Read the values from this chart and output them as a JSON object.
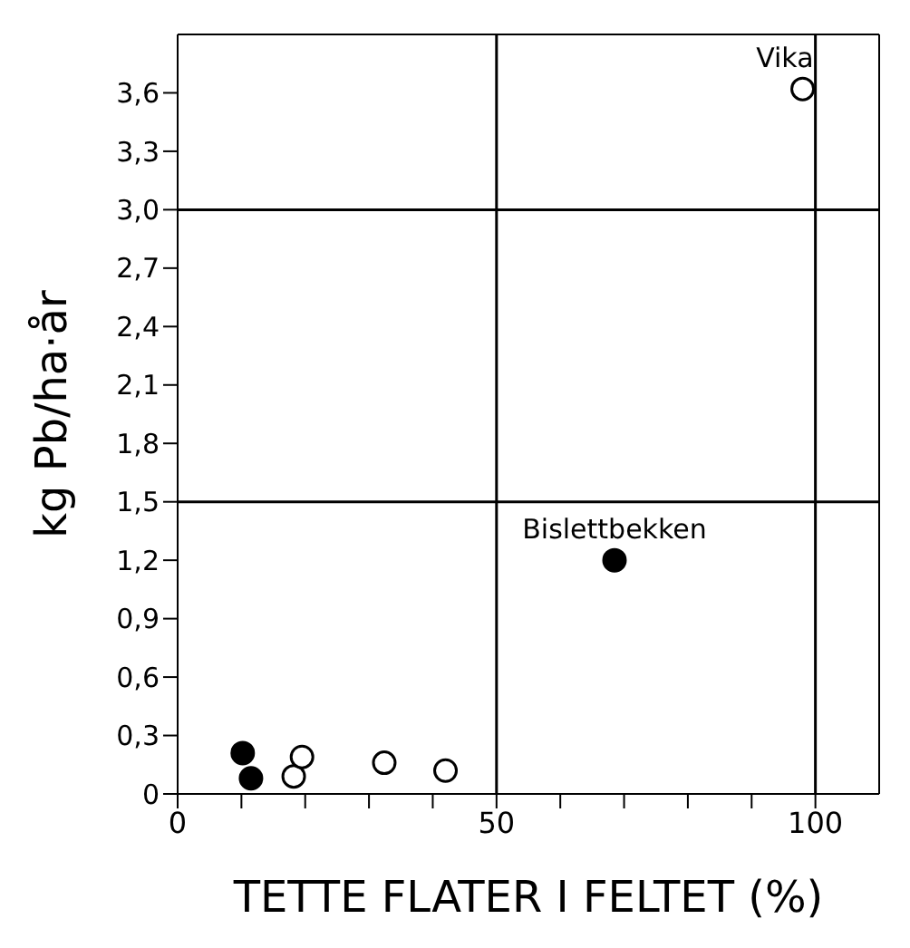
{
  "chart_data": {
    "type": "scatter",
    "xlabel": "TETTE FLATER I FELTET (%)",
    "ylabel": "kg Pb/ha·år",
    "series": [
      {
        "color": "#000000",
        "x": [
          10.2,
          11.5,
          68.5
        ],
        "values": [
          0.21,
          0.08,
          1.2
        ]
      },
      {
        "color": "#000000",
        "x": [
          18.2,
          19.5,
          32.4,
          42,
          98
        ],
        "values": [
          0.09,
          0.19,
          0.16,
          0.12,
          3.62
        ]
      }
    ],
    "xlim": [
      0,
      110
    ],
    "ylim": [
      0,
      3.9
    ],
    "xticks": [
      0,
      {
        "value": 10,
        "label": null
      },
      {
        "value": 20,
        "label": null
      },
      {
        "value": 30,
        "label": null
      },
      {
        "value": 40,
        "label": null
      },
      50,
      {
        "value": 60,
        "label": null
      },
      {
        "value": 70,
        "label": null
      },
      {
        "value": 80,
        "label": null
      },
      {
        "value": 90,
        "label": null
      },
      100
    ],
    "yticks": [
      0,
      {
        "value": 0.3,
        "label": "0,3"
      },
      {
        "value": 0.6,
        "label": "0,6"
      },
      {
        "value": 0.9,
        "label": "0,9"
      },
      {
        "value": 1.2,
        "label": "1,2"
      },
      {
        "value": 1.5,
        "label": "1,5"
      },
      {
        "value": 1.8,
        "label": "1,8"
      },
      {
        "value": 2.1,
        "label": "2,1"
      },
      {
        "value": 2.4,
        "label": "2,4"
      },
      {
        "value": 2.7,
        "label": "2,7"
      },
      {
        "value": 3.0,
        "label": "3,0"
      },
      {
        "value": 3.3,
        "label": "3,3"
      },
      {
        "value": 3.6,
        "label": "3,6"
      }
    ],
    "ref_lines": [
      {
        "axis": "x",
        "value": 50
      },
      {
        "axis": "x",
        "value": 100
      },
      {
        "axis": "y",
        "value": 1.5
      },
      {
        "axis": "y",
        "value": 3.0
      }
    ],
    "annotations": [
      {
        "text": "Vika",
        "x": 98,
        "y": 3.62
      },
      {
        "text": "Bislettbekken",
        "x": 68.5,
        "y": 1.2
      }
    ],
    "marker": "circle"
  }
}
